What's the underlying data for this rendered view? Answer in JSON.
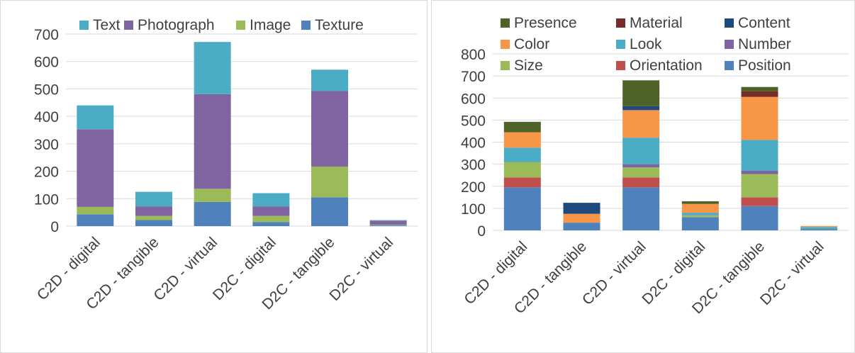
{
  "chart_data": [
    {
      "type": "bar",
      "stacked": true,
      "categories": [
        "C2D - digital",
        "C2D - tangible",
        "C2D - virtual",
        "D2C - digital",
        "D2C - tangible",
        "D2C - virtual"
      ],
      "ylim": [
        0,
        700
      ],
      "yticks": [
        0,
        100,
        200,
        300,
        400,
        500,
        600,
        700
      ],
      "grid": true,
      "legend_position": "top",
      "series": [
        {
          "name": "Texture",
          "color": "#4f81bd",
          "values": [
            43,
            22,
            88,
            15,
            105,
            3
          ]
        },
        {
          "name": "Image",
          "color": "#9bbb59",
          "values": [
            27,
            15,
            48,
            22,
            112,
            2
          ]
        },
        {
          "name": "Photograph",
          "color": "#8064a2",
          "values": [
            283,
            35,
            345,
            35,
            275,
            15
          ]
        },
        {
          "name": "Text",
          "color": "#4bacc6",
          "values": [
            87,
            53,
            190,
            48,
            78,
            2
          ]
        }
      ],
      "legend_order": [
        "Text",
        "Photograph",
        "Image",
        "Texture"
      ]
    },
    {
      "type": "bar",
      "stacked": true,
      "categories": [
        "C2D - digital",
        "C2D - tangible",
        "C2D - virtual",
        "D2C - digital",
        "D2C - tangible",
        "D2C - virtual"
      ],
      "ylim": [
        0,
        800
      ],
      "yticks": [
        0,
        100,
        200,
        300,
        400,
        500,
        600,
        700,
        800
      ],
      "grid": true,
      "legend_position": "top",
      "series": [
        {
          "name": "Position",
          "color": "#4f81bd",
          "values": [
            195,
            35,
            195,
            60,
            110,
            5
          ]
        },
        {
          "name": "Orientation",
          "color": "#c0504d",
          "values": [
            45,
            0,
            45,
            0,
            40,
            0
          ]
        },
        {
          "name": "Size",
          "color": "#9bbb59",
          "values": [
            70,
            0,
            45,
            8,
            105,
            0
          ]
        },
        {
          "name": "Number",
          "color": "#8064a2",
          "values": [
            0,
            0,
            15,
            2,
            15,
            0
          ]
        },
        {
          "name": "Look",
          "color": "#4bacc6",
          "values": [
            65,
            0,
            120,
            10,
            140,
            10
          ]
        },
        {
          "name": "Color",
          "color": "#f79646",
          "values": [
            70,
            40,
            125,
            40,
            195,
            5
          ]
        },
        {
          "name": "Content",
          "color": "#1f497d",
          "values": [
            0,
            50,
            18,
            0,
            0,
            0
          ]
        },
        {
          "name": "Material",
          "color": "#772c2a",
          "values": [
            0,
            0,
            0,
            0,
            25,
            0
          ]
        },
        {
          "name": "Presence",
          "color": "#4f6228",
          "values": [
            47,
            0,
            117,
            12,
            20,
            0
          ]
        }
      ],
      "legend_order": [
        "Presence",
        "Material",
        "Content",
        "Color",
        "Look",
        "Number",
        "Size",
        "Orientation",
        "Position"
      ]
    }
  ]
}
